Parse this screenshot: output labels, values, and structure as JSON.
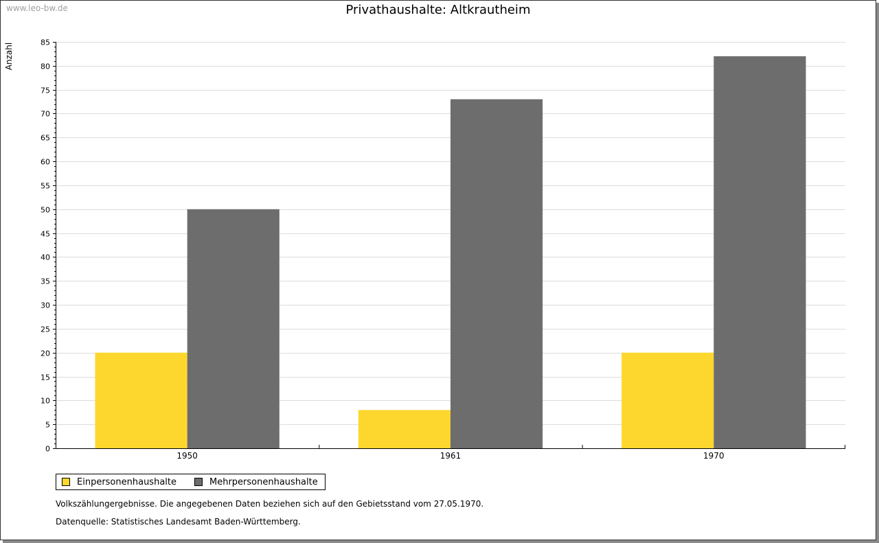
{
  "watermark": "www.leo-bw.de",
  "chart_data": {
    "type": "bar",
    "title": "Privathaushalte: Altkrautheim",
    "ylabel": "Anzahl",
    "xlabel": "",
    "categories": [
      "1950",
      "1961",
      "1970"
    ],
    "series": [
      {
        "name": "Einpersonenhaushalte",
        "values": [
          20,
          8,
          20
        ],
        "color": "#fdd72e"
      },
      {
        "name": "Mehrpersonenhaushalte",
        "values": [
          50,
          73,
          82
        ],
        "color": "#6d6d6d"
      }
    ],
    "ylim": [
      0,
      85
    ],
    "yticks": [
      0,
      5,
      10,
      15,
      20,
      25,
      30,
      35,
      40,
      45,
      50,
      55,
      60,
      65,
      70,
      75,
      80,
      85
    ],
    "grid": true,
    "legend": "bottom-left"
  },
  "notes": {
    "line1": "Volkszählungergebnisse. Die angegebenen Daten beziehen sich auf den Gebietsstand vom 27.05.1970.",
    "line2": "Datenquelle: Statistisches Landesamt Baden-Württemberg."
  }
}
